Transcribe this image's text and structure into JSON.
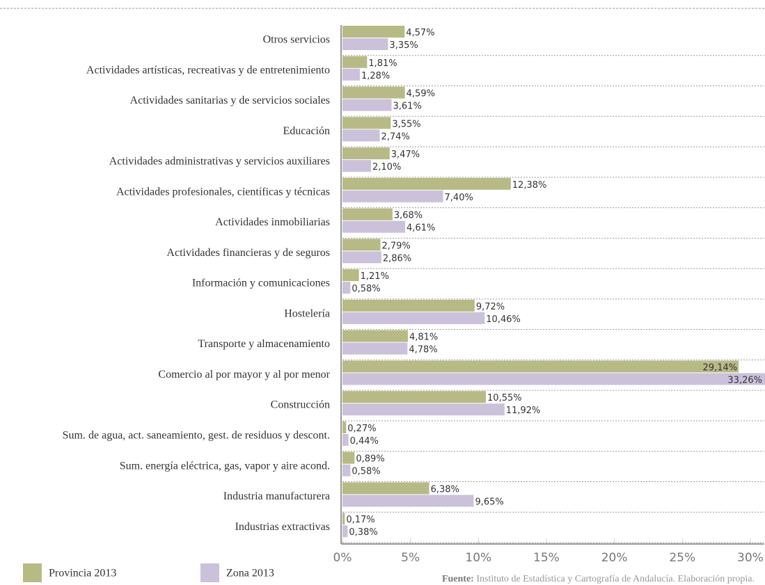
{
  "chart_data": {
    "type": "bar",
    "orientation": "horizontal",
    "categories": [
      "Otros servicios",
      "Actividades artísticas, recreativas y de entretenimiento",
      "Actividades sanitarias y de servicios sociales",
      "Educación",
      "Actividades administrativas y servicios auxiliares",
      "Actividades profesionales, científicas y técnicas",
      "Actividades inmobiliarias",
      "Actividades financieras y de seguros",
      "Información y comunicaciones",
      "Hostelería",
      "Transporte y almacenamiento",
      "Comercio al por mayor y al por menor",
      "Construcción",
      "Sum. de agua, act. saneamiento, gest. de residuos y descont.",
      "Sum. energía eléctrica, gas, vapor y aire acond.",
      "Industria manufacturera",
      "Industrias extractivas"
    ],
    "series": [
      {
        "name": "Provincia 2013",
        "color": "#b7ba84",
        "values": [
          4.57,
          1.81,
          4.59,
          3.55,
          3.47,
          12.38,
          3.68,
          2.79,
          1.21,
          9.72,
          4.81,
          29.14,
          10.55,
          0.27,
          0.89,
          6.38,
          0.17
        ],
        "value_labels": [
          "4,57%",
          "1,81%",
          "4,59%",
          "3,55%",
          "3,47%",
          "12,38%",
          "3,68%",
          "2,79%",
          "1,21%",
          "9,72%",
          "4,81%",
          "29,14%",
          "10,55%",
          "0,27%",
          "0,89%",
          "6,38%",
          "0,17%"
        ]
      },
      {
        "name": "Zona 2013",
        "color": "#cbc1da",
        "values": [
          3.35,
          1.28,
          3.61,
          2.74,
          2.1,
          7.4,
          4.61,
          2.86,
          0.58,
          10.46,
          4.78,
          33.26,
          11.92,
          0.44,
          0.58,
          9.65,
          0.38
        ],
        "value_labels": [
          "3,35%",
          "1,28%",
          "3,61%",
          "2,74%",
          "2,10%",
          "7,40%",
          "4,61%",
          "2,86%",
          "0,58%",
          "10,46%",
          "4,78%",
          "33,26%",
          "11,92%",
          "0,44%",
          "0,58%",
          "9,65%",
          "0,38%"
        ]
      }
    ],
    "xlim": [
      0,
      31
    ],
    "xticks": [
      {
        "value": 0,
        "label": "0%"
      },
      {
        "value": 5,
        "label": "5%"
      },
      {
        "value": 10,
        "label": "10%"
      },
      {
        "value": 15,
        "label": "15%"
      },
      {
        "value": 20,
        "label": "20%"
      },
      {
        "value": 25,
        "label": "25%"
      },
      {
        "value": 30,
        "label": "30%"
      }
    ],
    "grid": false,
    "legend": "bottom-left",
    "source_label": "Fuente:",
    "source_text": "Instituto de Estadística y Cartografía de Andalucía. Elaboración propia."
  }
}
